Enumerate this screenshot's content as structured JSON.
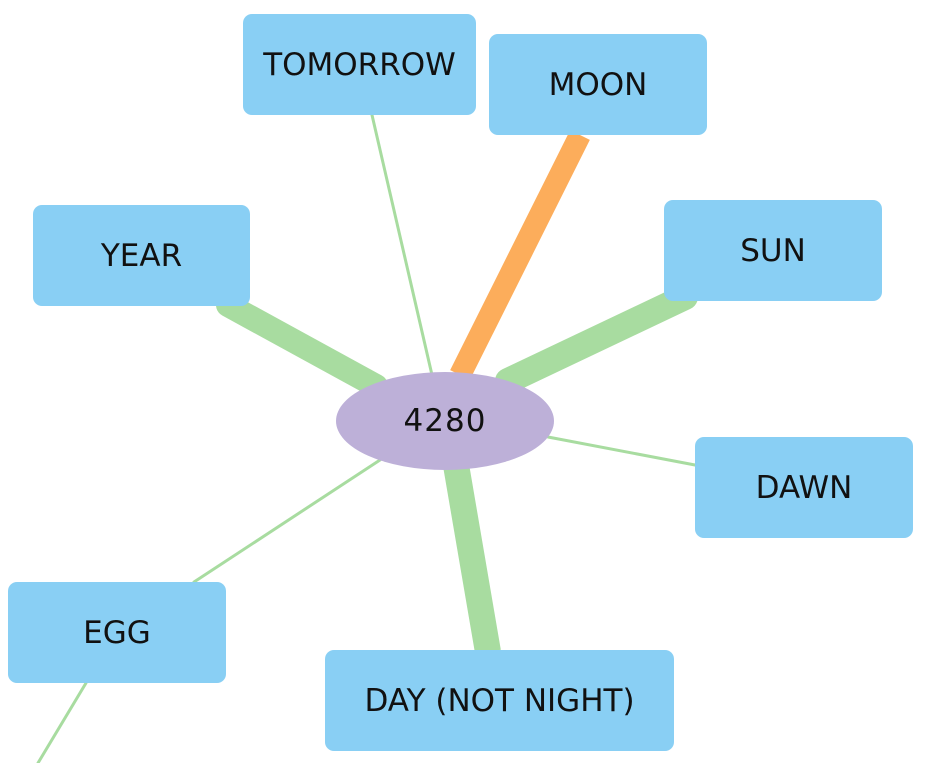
{
  "center": {
    "label": "4280",
    "color": "#bdb0d8"
  },
  "nodes": {
    "tomorrow": "TOMORROW",
    "moon": "MOON",
    "year": "YEAR",
    "sun": "SUN",
    "dawn": "DAWN",
    "egg": "EGG",
    "day": "DAY (NOT NIGHT)"
  },
  "colors": {
    "node": "#89cff4",
    "edge_green": "#a8dca0",
    "edge_orange": "#fcad5b"
  },
  "edges": [
    {
      "from": "4280",
      "to": "TOMORROW",
      "strength": "thin",
      "color": "green"
    },
    {
      "from": "4280",
      "to": "MOON",
      "strength": "thick",
      "color": "orange"
    },
    {
      "from": "4280",
      "to": "YEAR",
      "strength": "thick",
      "color": "green"
    },
    {
      "from": "4280",
      "to": "SUN",
      "strength": "thick",
      "color": "green"
    },
    {
      "from": "4280",
      "to": "DAWN",
      "strength": "thin",
      "color": "green"
    },
    {
      "from": "4280",
      "to": "EGG",
      "strength": "thin",
      "color": "green"
    },
    {
      "from": "4280",
      "to": "DAY (NOT NIGHT)",
      "strength": "thick",
      "color": "green"
    },
    {
      "from": "EGG",
      "to": "off-page",
      "strength": "thin",
      "color": "green"
    }
  ]
}
